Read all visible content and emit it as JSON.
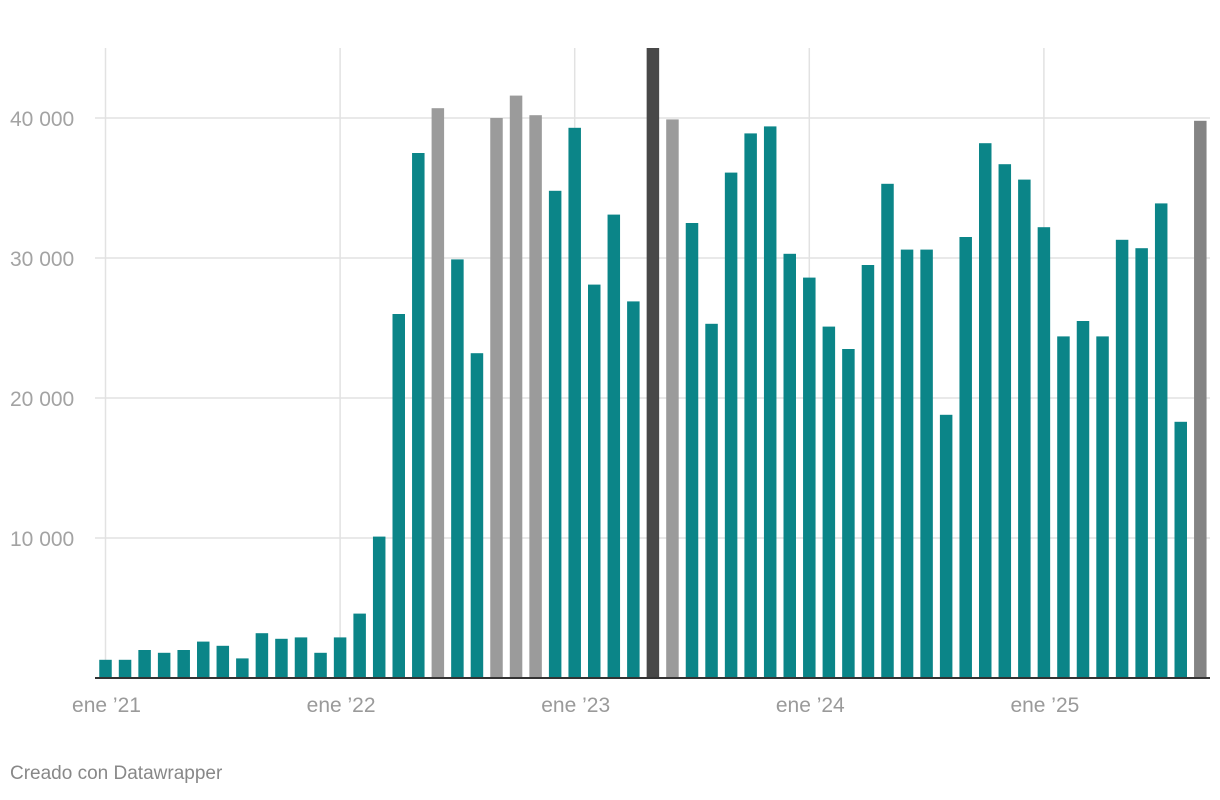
{
  "chart_data": {
    "type": "bar",
    "x": [
      "2021-01",
      "2021-02",
      "2021-03",
      "2021-04",
      "2021-05",
      "2021-06",
      "2021-07",
      "2021-08",
      "2021-09",
      "2021-10",
      "2021-11",
      "2021-12",
      "2022-01",
      "2022-02",
      "2022-03",
      "2022-04",
      "2022-05",
      "2022-06",
      "2022-07",
      "2022-08",
      "2022-09",
      "2022-10",
      "2022-11",
      "2022-12",
      "2023-01",
      "2023-02",
      "2023-03",
      "2023-04",
      "2023-05",
      "2023-06",
      "2023-07",
      "2023-08",
      "2023-09",
      "2023-10",
      "2023-11",
      "2023-12",
      "2024-01",
      "2024-02",
      "2024-03",
      "2024-04",
      "2024-05",
      "2024-06",
      "2024-07",
      "2024-08",
      "2024-09",
      "2024-10",
      "2024-11",
      "2024-12",
      "2025-01",
      "2025-02",
      "2025-03",
      "2025-04",
      "2025-05",
      "2025-06",
      "2025-07",
      "2025-08",
      "2025-09"
    ],
    "values": [
      1300,
      1300,
      2000,
      1800,
      2000,
      2600,
      2300,
      1400,
      3200,
      2800,
      2900,
      1800,
      2900,
      4600,
      10100,
      26000,
      37500,
      40700,
      29900,
      23200,
      40000,
      41600,
      40200,
      34800,
      39300,
      28100,
      33100,
      26900,
      45000,
      39900,
      32500,
      25300,
      36100,
      38900,
      39400,
      30300,
      28600,
      25100,
      23500,
      29500,
      35300,
      30600,
      30600,
      18800,
      31500,
      38200,
      36700,
      35600,
      32200,
      24400,
      25500,
      24400,
      31300,
      30700,
      33900,
      18300,
      39800
    ],
    "bar_colors": [
      "#0b8588",
      "#0b8588",
      "#0b8588",
      "#0b8588",
      "#0b8588",
      "#0b8588",
      "#0b8588",
      "#0b8588",
      "#0b8588",
      "#0b8588",
      "#0b8588",
      "#0b8588",
      "#0b8588",
      "#0b8588",
      "#0b8588",
      "#0b8588",
      "#0b8588",
      "#9b9b9b",
      "#0b8588",
      "#0b8588",
      "#9b9b9b",
      "#9b9b9b",
      "#9b9b9b",
      "#0b8588",
      "#0b8588",
      "#0b8588",
      "#0b8588",
      "#0b8588",
      "#484848",
      "#9b9b9b",
      "#0b8588",
      "#0b8588",
      "#0b8588",
      "#0b8588",
      "#0b8588",
      "#0b8588",
      "#0b8588",
      "#0b8588",
      "#0b8588",
      "#0b8588",
      "#0b8588",
      "#0b8588",
      "#0b8588",
      "#0b8588",
      "#0b8588",
      "#0b8588",
      "#0b8588",
      "#0b8588",
      "#0b8588",
      "#0b8588",
      "#0b8588",
      "#0b8588",
      "#0b8588",
      "#0b8588",
      "#0b8588",
      "#0b8588",
      "#848484"
    ],
    "ylim": [
      0,
      45000
    ],
    "yticks": [
      10000,
      20000,
      30000,
      40000
    ],
    "ytick_labels": [
      "10 000",
      "20 000",
      "30 000",
      "40 000"
    ],
    "xtick_indices": [
      0,
      12,
      24,
      36,
      48
    ],
    "xtick_labels": [
      "ene ’21",
      "ene ’22",
      "ene ’23",
      "ene ’24",
      "ene ’25"
    ],
    "grid": true,
    "colors": {
      "primary": "#0b8588",
      "highlight_gray": "#9b9b9b",
      "highlight_dark": "#484848",
      "last_gray": "#848484"
    }
  },
  "footer": {
    "credit": "Creado con Datawrapper"
  }
}
